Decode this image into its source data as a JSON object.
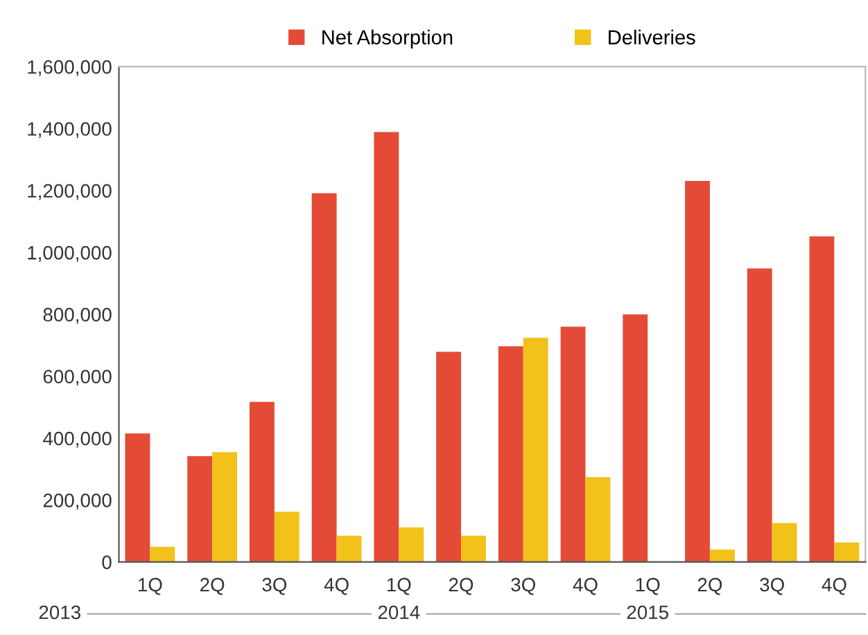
{
  "chart_data": {
    "type": "bar",
    "categories": [
      "1Q",
      "2Q",
      "3Q",
      "4Q",
      "1Q",
      "2Q",
      "3Q",
      "4Q",
      "1Q",
      "2Q",
      "3Q",
      "4Q"
    ],
    "series": [
      {
        "name": "Net Absorption",
        "color": "#e34b36",
        "values": [
          415000,
          342000,
          517000,
          1191000,
          1389000,
          679000,
          697000,
          760000,
          800000,
          1231000,
          948000,
          1052000
        ]
      },
      {
        "name": "Deliveries",
        "color": "#f2c11a",
        "values": [
          49000,
          355000,
          162000,
          85000,
          112000,
          85000,
          724000,
          274000,
          0,
          40000,
          126000,
          63000
        ]
      }
    ],
    "ylim": [
      0,
      1600000
    ],
    "yticks": [
      0,
      {
        "value": 200000,
        "label": "200,000"
      },
      {
        "value": 400000,
        "label": "400,000"
      },
      {
        "value": 600000,
        "label": "600,000"
      },
      {
        "value": 800000,
        "label": "800,000"
      },
      {
        "value": 1000000,
        "label": "1,000,000"
      },
      {
        "value": 1200000,
        "label": "1,200,000"
      },
      {
        "value": 1400000,
        "label": "1,400,000"
      },
      {
        "value": 1600000,
        "label": "1,600,000"
      }
    ],
    "annotations": [
      "2013",
      "2014",
      "2015"
    ],
    "legend": "top",
    "grid": false
  }
}
